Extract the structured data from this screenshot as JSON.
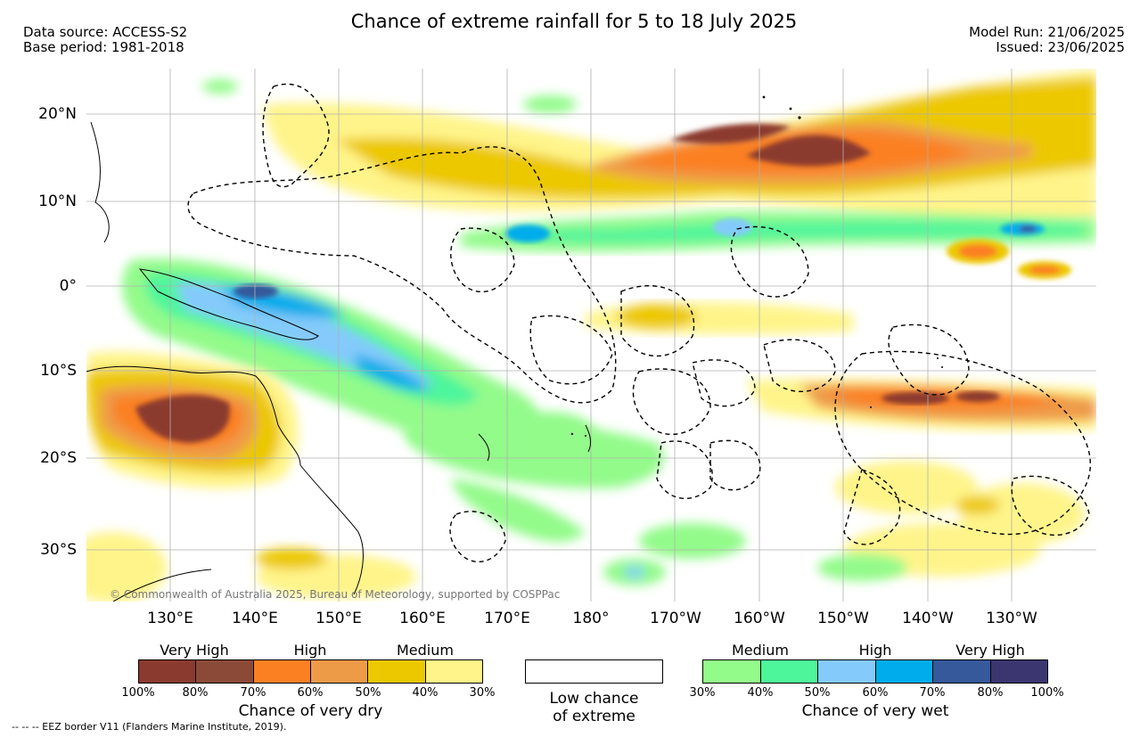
{
  "header": {
    "title": "Chance of extreme rainfall for 5 to 18 July 2025",
    "source_line": "Data source: ACCESS-S2",
    "base_line": "Base period: 1981-2018",
    "model_run": "Model Run: 21/06/2025",
    "issued": "Issued: 23/06/2025"
  },
  "map": {
    "copyright": "© Commonwealth of Australia 2025, Bureau of Meteorology, supported by COSPPac",
    "lat_labels": [
      "20°N",
      "10°N",
      "0°",
      "10°S",
      "20°S",
      "30°S"
    ],
    "lon_labels": [
      "130°E",
      "140°E",
      "150°E",
      "160°E",
      "170°E",
      "180°",
      "170°W",
      "160°W",
      "150°W",
      "140°W",
      "130°W"
    ]
  },
  "legend": {
    "dry": {
      "categories": [
        "Very High",
        "High",
        "Medium"
      ],
      "colors": [
        "#8b3a2f",
        "#8b4a38",
        "#fb8022",
        "#ee9b48",
        "#ecc800",
        "#fff48a"
      ],
      "ticks": [
        "100%",
        "80%",
        "70%",
        "60%",
        "50%",
        "40%",
        "30%"
      ],
      "title": "Chance of very dry"
    },
    "low": {
      "line1": "Low chance",
      "line2": "of extreme"
    },
    "wet": {
      "categories": [
        "Medium",
        "High",
        "Very High"
      ],
      "colors": [
        "#93fb8a",
        "#4df59b",
        "#84cafb",
        "#00aceb",
        "#35599b",
        "#3b3670"
      ],
      "ticks": [
        "30%",
        "40%",
        "50%",
        "60%",
        "70%",
        "80%",
        "100%"
      ],
      "title": "Chance of very wet"
    }
  },
  "footnote": "-- -- -- EEZ border V11 (Flanders Marine Institute, 2019)."
}
